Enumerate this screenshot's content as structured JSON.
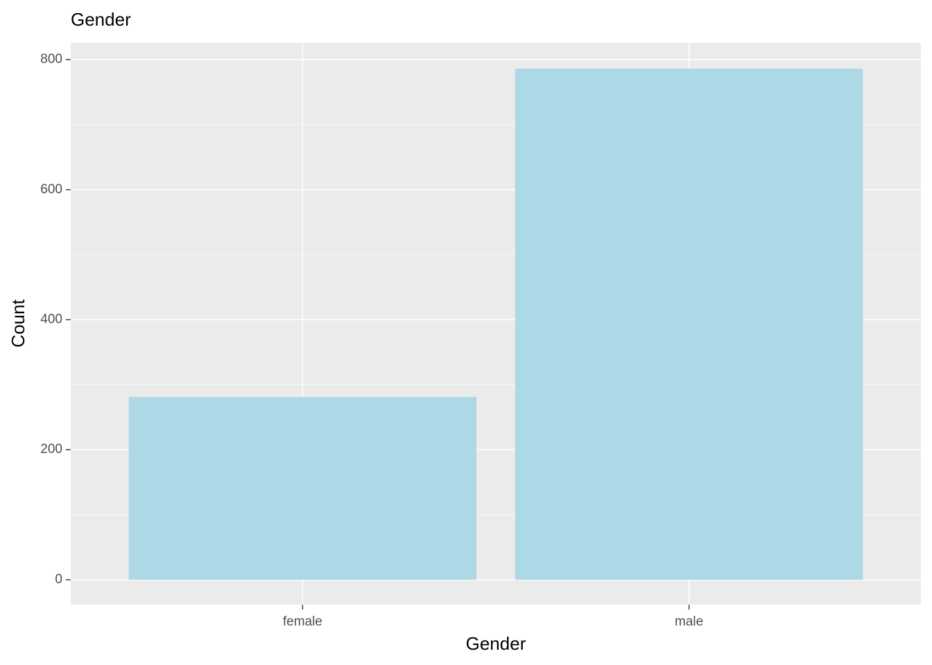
{
  "chart_data": {
    "type": "bar",
    "title": "Gender",
    "x_label": "Gender",
    "y_label": "Count",
    "categories": [
      "female",
      "male"
    ],
    "values": [
      281,
      786
    ],
    "color": "#add8e6",
    "ylim": [
      -38.4,
      825.6
    ],
    "yticks": [
      0,
      200,
      400,
      600,
      800
    ],
    "yminorticks": [
      100,
      300,
      500,
      700
    ],
    "grid": true
  }
}
